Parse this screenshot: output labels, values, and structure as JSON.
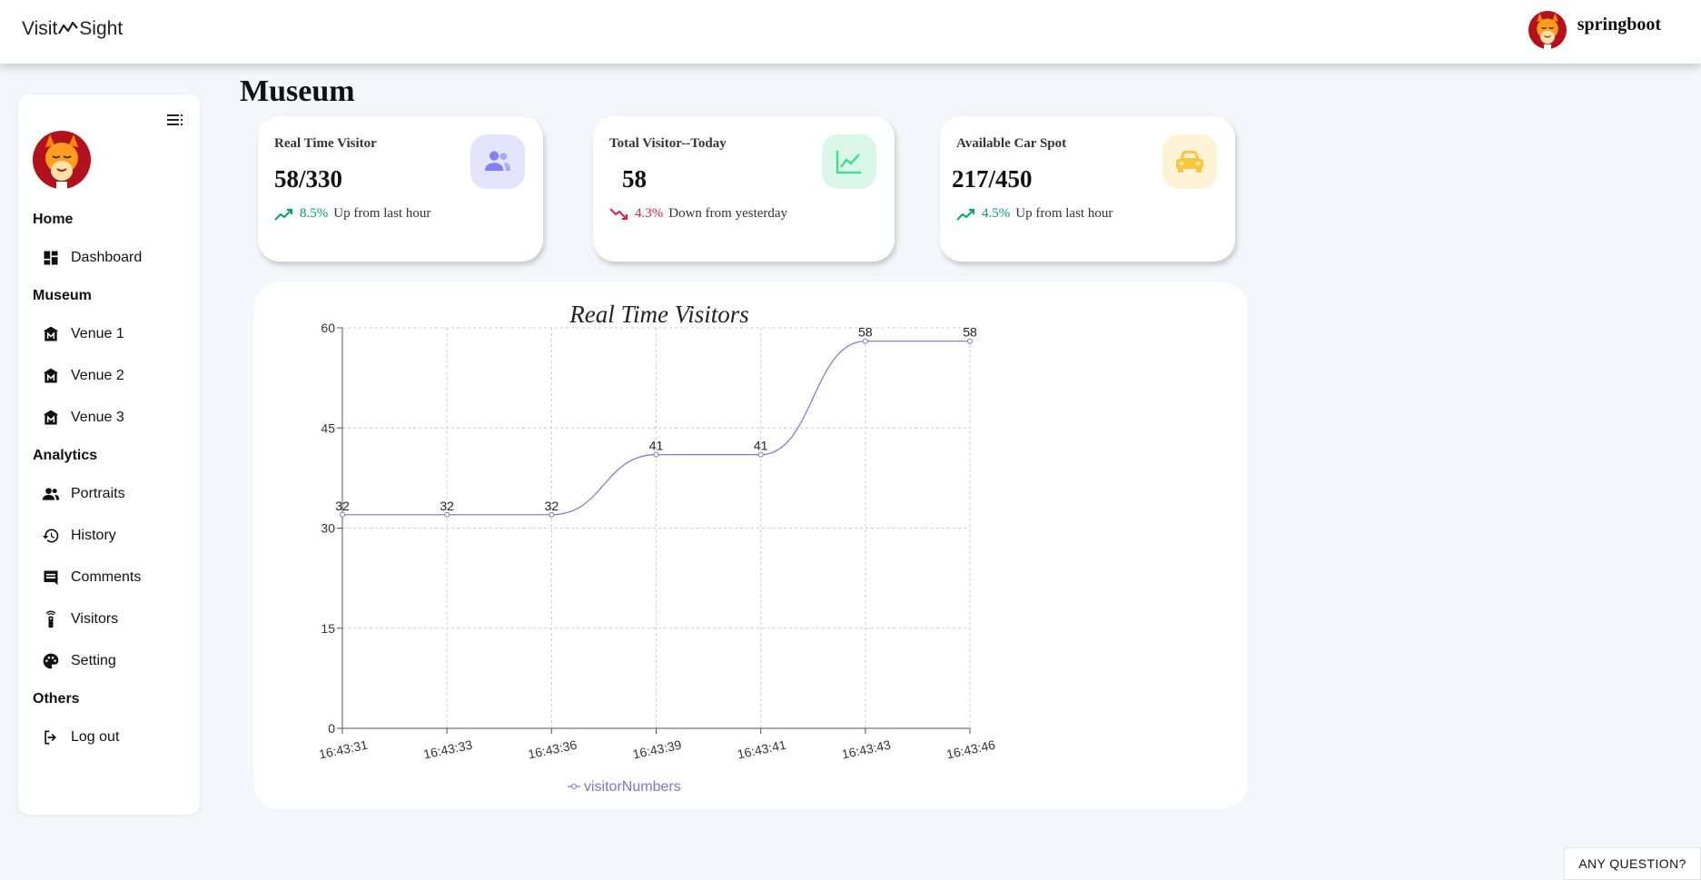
{
  "header": {
    "logo_left": "Visit",
    "logo_right": "Sight",
    "logo_icon": "chart-zigzag-icon",
    "username": "springboot",
    "avatar_icon": "devil-avatar-icon"
  },
  "sidebar": {
    "toggle_icon": "menu-list-icon",
    "sections": {
      "home": "Home",
      "museum": "Museum",
      "analytics": "Analytics",
      "others": "Others"
    },
    "items": {
      "dashboard": "Dashboard",
      "venue1": "Venue 1",
      "venue2": "Venue 2",
      "venue3": "Venue 3",
      "portraits": "Portraits",
      "history": "History",
      "comments": "Comments",
      "visitors": "Visitors",
      "setting": "Setting",
      "logout": "Log out"
    }
  },
  "page": {
    "title": "Museum"
  },
  "cards": {
    "realtime": {
      "label": "Real Time Visitor",
      "value": "58/330",
      "change": "8.5%",
      "change_text": "Up from last hour",
      "direction": "up",
      "icon": "people-icon",
      "icon_color": "#8280ff",
      "icon_bg": "#e5e4ff"
    },
    "today": {
      "label": "Total Visitor--Today",
      "value": "58",
      "change": "4.3%",
      "change_text": "Down from yesterday",
      "direction": "down",
      "icon": "line-chart-icon",
      "icon_color": "#4ad991",
      "icon_bg": "#d9f7e8"
    },
    "parking": {
      "label": "Available Car Spot",
      "value": "217/450",
      "change": "4.5%",
      "change_text": "Up from last hour",
      "direction": "up",
      "icon": "car-icon",
      "icon_color": "#fec53d",
      "icon_bg": "#fff3d6"
    }
  },
  "chart_data": {
    "type": "line",
    "title": "Real Time Visitors",
    "x": [
      "16:43:31",
      "16:43:33",
      "16:43:36",
      "16:43:39",
      "16:43:41",
      "16:43:43",
      "16:43:46"
    ],
    "series": [
      {
        "name": "visitorNumbers",
        "values": [
          32,
          32,
          32,
          41,
          41,
          58,
          58
        ],
        "color": "#7777cc"
      }
    ],
    "ylim": [
      0,
      60
    ],
    "yticks": [
      0,
      15,
      30,
      45,
      60
    ],
    "grid": true,
    "legend": "bottom",
    "smooth": true
  },
  "help": {
    "label": "ANY QUESTION?"
  }
}
